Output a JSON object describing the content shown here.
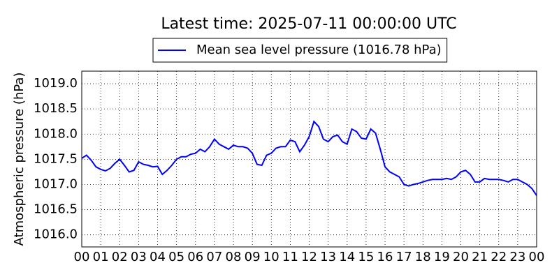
{
  "chart_data": {
    "type": "line",
    "title": "Latest time: 2025-07-11 00:00:00 UTC",
    "y_label": "Atmospheric pressure (hPa)",
    "legend": "upper center",
    "grid": true,
    "x": [
      0,
      0.25,
      0.5,
      0.75,
      1,
      1.25,
      1.5,
      1.75,
      2,
      2.25,
      2.5,
      2.75,
      3,
      3.25,
      3.5,
      3.75,
      4,
      4.25,
      4.5,
      4.75,
      5,
      5.25,
      5.5,
      5.75,
      6,
      6.25,
      6.5,
      6.75,
      7,
      7.25,
      7.5,
      7.75,
      8,
      8.25,
      8.5,
      8.75,
      9,
      9.25,
      9.5,
      9.75,
      10,
      10.25,
      10.5,
      10.75,
      11,
      11.25,
      11.5,
      11.75,
      12,
      12.25,
      12.5,
      12.75,
      13,
      13.25,
      13.5,
      13.75,
      14,
      14.25,
      14.5,
      14.75,
      15,
      15.25,
      15.5,
      15.75,
      16,
      16.25,
      16.5,
      16.75,
      17,
      17.25,
      17.5,
      17.75,
      18,
      18.25,
      18.5,
      18.75,
      19,
      19.25,
      19.5,
      19.75,
      20,
      20.25,
      20.5,
      20.75,
      21,
      21.25,
      21.5,
      21.75,
      22,
      22.25,
      22.5,
      22.75,
      23,
      23.25,
      23.5,
      23.75,
      24
    ],
    "series": [
      {
        "name": "Mean sea level pressure (1016.78 hPa)",
        "color": "#0000ff",
        "values": [
          1017.52,
          1017.58,
          1017.48,
          1017.35,
          1017.3,
          1017.27,
          1017.32,
          1017.42,
          1017.5,
          1017.38,
          1017.25,
          1017.28,
          1017.45,
          1017.4,
          1017.38,
          1017.35,
          1017.36,
          1017.2,
          1017.28,
          1017.38,
          1017.5,
          1017.55,
          1017.55,
          1017.6,
          1017.62,
          1017.7,
          1017.65,
          1017.75,
          1017.9,
          1017.8,
          1017.75,
          1017.7,
          1017.78,
          1017.75,
          1017.75,
          1017.72,
          1017.62,
          1017.4,
          1017.38,
          1017.58,
          1017.62,
          1017.72,
          1017.75,
          1017.75,
          1017.88,
          1017.85,
          1017.65,
          1017.78,
          1017.95,
          1018.25,
          1018.15,
          1017.9,
          1017.85,
          1017.95,
          1017.98,
          1017.85,
          1017.8,
          1018.1,
          1018.05,
          1017.92,
          1017.9,
          1018.1,
          1018.02,
          1017.7,
          1017.35,
          1017.25,
          1017.2,
          1017.15,
          1017.0,
          1016.97,
          1017.0,
          1017.02,
          1017.05,
          1017.08,
          1017.1,
          1017.1,
          1017.1,
          1017.12,
          1017.1,
          1017.15,
          1017.25,
          1017.28,
          1017.2,
          1017.05,
          1017.05,
          1017.12,
          1017.1,
          1017.1,
          1017.1,
          1017.08,
          1017.05,
          1017.1,
          1017.1,
          1017.05,
          1017.0,
          1016.92,
          1016.78
        ]
      }
    ],
    "xlim": [
      0,
      24
    ],
    "xticks": [
      {
        "value": 0,
        "label": "00"
      },
      {
        "value": 1,
        "label": "01"
      },
      {
        "value": 2,
        "label": "02"
      },
      {
        "value": 3,
        "label": "03"
      },
      {
        "value": 4,
        "label": "04"
      },
      {
        "value": 5,
        "label": "05"
      },
      {
        "value": 6,
        "label": "06"
      },
      {
        "value": 7,
        "label": "07"
      },
      {
        "value": 8,
        "label": "08"
      },
      {
        "value": 9,
        "label": "09"
      },
      {
        "value": 10,
        "label": "10"
      },
      {
        "value": 11,
        "label": "11"
      },
      {
        "value": 12,
        "label": "12"
      },
      {
        "value": 13,
        "label": "13"
      },
      {
        "value": 14,
        "label": "14"
      },
      {
        "value": 15,
        "label": "15"
      },
      {
        "value": 16,
        "label": "16"
      },
      {
        "value": 17,
        "label": "17"
      },
      {
        "value": 18,
        "label": "18"
      },
      {
        "value": 19,
        "label": "19"
      },
      {
        "value": 20,
        "label": "20"
      },
      {
        "value": 21,
        "label": "21"
      },
      {
        "value": 22,
        "label": "22"
      },
      {
        "value": 23,
        "label": "23"
      },
      {
        "value": 24,
        "label": "00"
      }
    ],
    "ylim": [
      1015.76,
      1019.25
    ],
    "yticks": [
      {
        "value": 1016,
        "label": "1016.0"
      },
      1016.5,
      {
        "value": 1017,
        "label": "1017.0"
      },
      1017.5,
      {
        "value": 1018,
        "label": "1018.0"
      },
      1018.5,
      {
        "value": 1019,
        "label": "1019.0"
      }
    ]
  }
}
